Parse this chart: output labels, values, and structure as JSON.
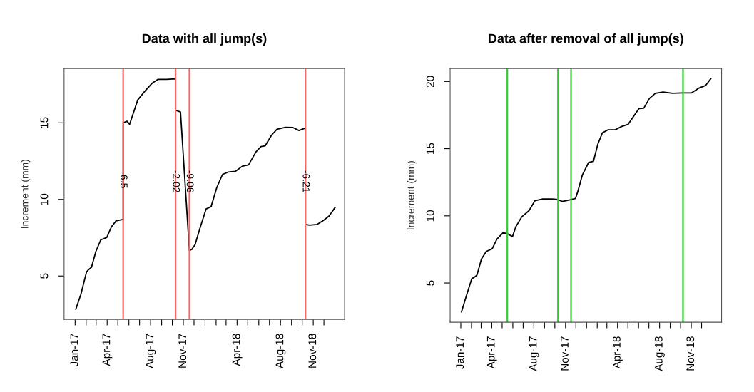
{
  "chart_data": [
    {
      "type": "line",
      "title": "Data with all jump(s)",
      "ylabel": "Increment (mm)",
      "xlim": [
        "2016-12-01",
        "2019-01-28"
      ],
      "ylim": [
        2.16,
        18.54
      ],
      "yticks": [
        5,
        10,
        15
      ],
      "xticks": [
        {
          "value": "2017-01-01",
          "label": "Jan-17"
        },
        {
          "value": "2017-02-01",
          "label": null
        },
        {
          "value": "2017-03-01",
          "label": null
        },
        {
          "value": "2017-04-01",
          "label": "Apr-17"
        },
        {
          "value": "2017-05-01",
          "label": null
        },
        {
          "value": "2017-06-01",
          "label": null
        },
        {
          "value": "2017-07-01",
          "label": null
        },
        {
          "value": "2017-08-01",
          "label": "Aug-17"
        },
        {
          "value": "2017-09-01",
          "label": null
        },
        {
          "value": "2017-10-01",
          "label": null
        },
        {
          "value": "2017-11-01",
          "label": "Nov-17"
        },
        {
          "value": "2017-12-01",
          "label": null
        },
        {
          "value": "2018-01-01",
          "label": null
        },
        {
          "value": "2018-02-01",
          "label": null
        },
        {
          "value": "2018-03-01",
          "label": null
        },
        {
          "value": "2018-04-01",
          "label": "Apr-18"
        },
        {
          "value": "2018-05-01",
          "label": null
        },
        {
          "value": "2018-06-01",
          "label": null
        },
        {
          "value": "2018-07-01",
          "label": null
        },
        {
          "value": "2018-08-01",
          "label": "Aug-18"
        },
        {
          "value": "2018-09-01",
          "label": null
        },
        {
          "value": "2018-10-01",
          "label": null
        },
        {
          "value": "2018-11-01",
          "label": "Nov-18"
        },
        {
          "value": "2018-12-01",
          "label": null
        }
      ],
      "series": [
        {
          "color": "#000000",
          "x": [
            "2017-01-03",
            "2017-01-17",
            "2017-02-02",
            "2017-02-08",
            "2017-02-16",
            "2017-02-28",
            "2017-03-14",
            "2017-03-31",
            "2017-04-13",
            "2017-04-26",
            "2017-05-13",
            "2017-05-16",
            "2017-05-16",
            "2017-05-27",
            "2017-06-03",
            "2017-06-13",
            "2017-06-26",
            "2017-07-16",
            "2017-08-06",
            "2017-08-22",
            "2017-09-15",
            "2017-10-10",
            "2017-10-10",
            "2017-10-24",
            "2017-11-18",
            "2017-11-25",
            "2017-12-04",
            "2017-12-18",
            "2018-01-04",
            "2018-01-18",
            "2018-02-03",
            "2018-02-19",
            "2018-03-07",
            "2018-03-27",
            "2018-04-16",
            "2018-05-03",
            "2018-05-24",
            "2018-06-07",
            "2018-06-19",
            "2018-07-07",
            "2018-07-22",
            "2018-08-13",
            "2018-09-05",
            "2018-09-22",
            "2018-10-10",
            "2018-10-10",
            "2018-10-22",
            "2018-11-12",
            "2018-11-28",
            "2018-12-15",
            "2019-01-01"
          ],
          "values": [
            2.83,
            3.79,
            5.26,
            5.42,
            5.57,
            6.58,
            7.36,
            7.52,
            8.21,
            8.6,
            8.68,
            8.68,
            15.0,
            15.1,
            14.9,
            15.6,
            16.5,
            17.07,
            17.6,
            17.84,
            17.84,
            17.87,
            15.82,
            15.71,
            6.66,
            6.74,
            7.05,
            8.14,
            9.38,
            9.53,
            10.78,
            11.63,
            11.79,
            11.83,
            12.17,
            12.25,
            13.1,
            13.45,
            13.5,
            14.2,
            14.58,
            14.7,
            14.69,
            14.5,
            14.66,
            8.37,
            8.32,
            8.37,
            8.6,
            8.91,
            9.46
          ]
        }
      ],
      "ref_lines": [
        {
          "axis": "x",
          "value": "2017-05-16",
          "label": "6.5",
          "color": "#ff6666"
        },
        {
          "axis": "x",
          "value": "2017-10-10",
          "label": "-2.02",
          "color": "#ff6666"
        },
        {
          "axis": "x",
          "value": "2017-11-18",
          "label": "-9.06",
          "color": "#ff6666"
        },
        {
          "axis": "x",
          "value": "2018-10-10",
          "label": "-6.21",
          "color": "#ff6666"
        }
      ]
    },
    {
      "type": "line",
      "title": "Data after removal of all jump(s)",
      "ylabel": "Increment (mm)",
      "xlim": [
        "2016-12-01",
        "2019-01-28"
      ],
      "ylim": [
        2.08,
        20.96
      ],
      "yticks": [
        5,
        10,
        15,
        20
      ],
      "xticks": [
        {
          "value": "2017-01-01",
          "label": "Jan-17"
        },
        {
          "value": "2017-02-01",
          "label": null
        },
        {
          "value": "2017-03-01",
          "label": null
        },
        {
          "value": "2017-04-01",
          "label": "Apr-17"
        },
        {
          "value": "2017-05-01",
          "label": null
        },
        {
          "value": "2017-06-01",
          "label": null
        },
        {
          "value": "2017-07-01",
          "label": null
        },
        {
          "value": "2017-08-01",
          "label": "Aug-17"
        },
        {
          "value": "2017-09-01",
          "label": null
        },
        {
          "value": "2017-10-01",
          "label": null
        },
        {
          "value": "2017-11-01",
          "label": "Nov-17"
        },
        {
          "value": "2017-12-01",
          "label": null
        },
        {
          "value": "2018-01-01",
          "label": null
        },
        {
          "value": "2018-02-01",
          "label": null
        },
        {
          "value": "2018-03-01",
          "label": null
        },
        {
          "value": "2018-04-01",
          "label": "Apr-18"
        },
        {
          "value": "2018-05-01",
          "label": null
        },
        {
          "value": "2018-06-01",
          "label": null
        },
        {
          "value": "2018-07-01",
          "label": null
        },
        {
          "value": "2018-08-01",
          "label": "Aug-18"
        },
        {
          "value": "2018-09-01",
          "label": null
        },
        {
          "value": "2018-10-01",
          "label": null
        },
        {
          "value": "2018-11-01",
          "label": "Nov-18"
        },
        {
          "value": "2018-12-01",
          "label": null
        }
      ],
      "series": [
        {
          "color": "#000000",
          "x": [
            "2017-01-03",
            "2017-01-17",
            "2017-02-02",
            "2017-02-11",
            "2017-02-17",
            "2017-03-02",
            "2017-03-16",
            "2017-04-02",
            "2017-04-16",
            "2017-05-03",
            "2017-05-16",
            "2017-05-31",
            "2017-06-10",
            "2017-06-27",
            "2017-07-18",
            "2017-08-04",
            "2017-08-25",
            "2017-09-22",
            "2017-10-09",
            "2017-10-23",
            "2017-11-16",
            "2017-11-30",
            "2017-12-06",
            "2017-12-20",
            "2018-01-07",
            "2018-01-21",
            "2018-02-03",
            "2018-02-16",
            "2018-03-04",
            "2018-03-25",
            "2018-04-12",
            "2018-05-02",
            "2018-05-19",
            "2018-06-02",
            "2018-06-16",
            "2018-07-03",
            "2018-07-20",
            "2018-08-11",
            "2018-09-08",
            "2018-10-05",
            "2018-11-02",
            "2018-11-22",
            "2018-12-13",
            "2018-12-28"
          ],
          "values": [
            2.85,
            4.04,
            5.33,
            5.46,
            5.6,
            6.8,
            7.35,
            7.54,
            8.27,
            8.73,
            8.68,
            8.46,
            9.2,
            9.93,
            10.39,
            11.12,
            11.25,
            11.25,
            11.21,
            11.07,
            11.21,
            11.3,
            11.76,
            13.05,
            13.97,
            14.06,
            15.35,
            16.18,
            16.4,
            16.4,
            16.64,
            16.82,
            17.46,
            17.98,
            18.01,
            18.75,
            19.12,
            19.21,
            19.12,
            19.15,
            19.15,
            19.49,
            19.71,
            20.22
          ]
        }
      ],
      "ref_lines": [
        {
          "axis": "x",
          "value": "2017-05-16",
          "color": "#33cc33"
        },
        {
          "axis": "x",
          "value": "2017-10-10",
          "color": "#33cc33"
        },
        {
          "axis": "x",
          "value": "2017-11-17",
          "color": "#33cc33"
        },
        {
          "axis": "x",
          "value": "2018-10-08",
          "color": "#33cc33"
        }
      ]
    }
  ]
}
